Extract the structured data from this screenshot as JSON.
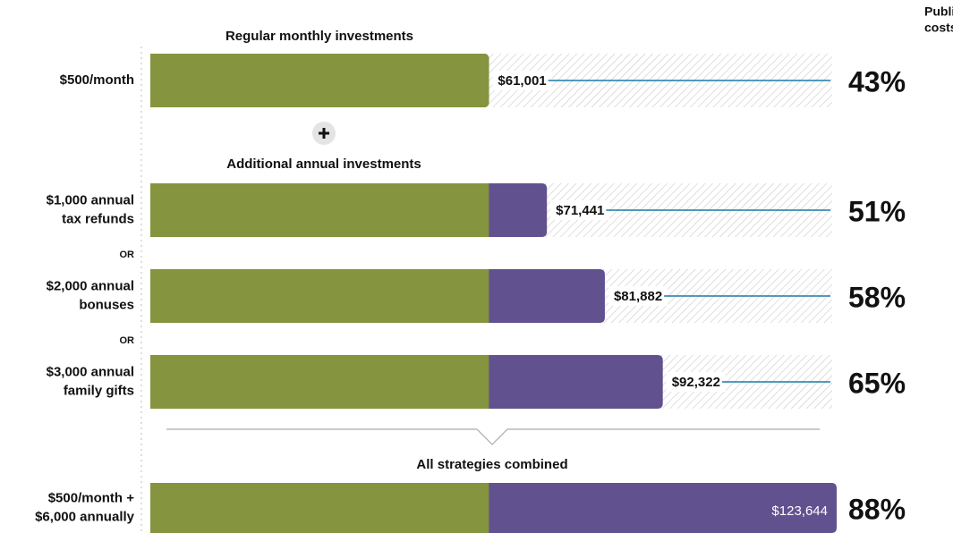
{
  "chart_data": {
    "type": "bar",
    "header": [
      "Public college",
      "costs covered"
    ],
    "sections": [
      "Regular monthly investments",
      "Additional annual investments",
      "All strategies combined"
    ],
    "separators": [
      "OR",
      "OR"
    ],
    "categories": [
      [
        "$500/month"
      ],
      [
        "$1,000 annual",
        "tax refunds"
      ],
      [
        "$2,000 annual",
        "bonuses"
      ],
      [
        "$3,000 annual",
        "family gifts"
      ],
      [
        "$500/month +",
        "$6,000 annually"
      ]
    ],
    "base_values": [
      61001,
      61001,
      61001,
      61001,
      61001
    ],
    "values": [
      61001,
      71441,
      81882,
      92322,
      123644
    ],
    "value_labels": [
      "$61,001",
      "$71,441",
      "$81,882",
      "$92,322",
      "$123,644"
    ],
    "coverage": [
      "43%",
      "51%",
      "58%",
      "65%",
      "88%"
    ],
    "base_color": "#85943e",
    "color": "#62518f",
    "accent_color": "#1a7aa8"
  }
}
